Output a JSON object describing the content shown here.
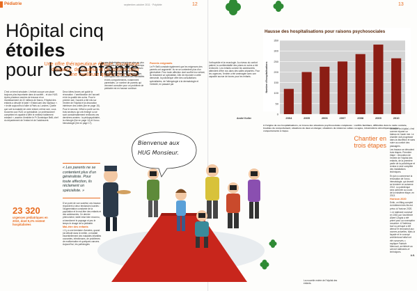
{
  "left_page": {
    "rubrique": "Pédiatrie",
    "folio_mid": "septembre-octobre 2011 · Polyâtrie",
    "folio_num": "12",
    "title_pre": "Hôpital cinq ",
    "title_bold": "étoiles",
    "title_line2": "pour les enfants",
    "subtitle": "Une offre thérapeutique élargie, davantage d'espace, de couleur et de lumière pour une meilleure qualité des soins.",
    "col1_text": "C'est un trend séculaire. L'enfant occupe une place toujours plus importante dans la société... et aux HUG. Après plusieurs années de travaux et un investissement de 22 millions de francs, l'Hôpital des enfants a dévoilé le label « Enfant-ami des hôpitaux ». « Invité aujourd'hui d'aller à Paris ou Londres. Quelle que soit la maladie de votre enfant, même rare, vous trouverez aux HUG un spécialiste, un professionnel compétent et capable d'offrir le meilleur traitement existant », assène d'emblée le Pr Dominique Belli, chef du département de l'enfant et de l'adolescent.",
    "col2_text": "Deux idées-forces ont guidé la rénovation : l'amélioration de l'accueil et de la qualité des soins. Pour le premier axe, l'accent a été mis sur l'entrée de l'hôpital et la décoration intérieure des unités (lire en page 15). Pour le second, l'effort a porté sur les trois secteurs qui ont émergé ou se sont considérablement renforcés ces dernières années : la pédopsychiatrie, la chirurgie (lire en page 14) et l'onco-hématologie (lire en page 17).",
    "col3_text": "ans pédiatriques est pris en plus en plus prépondérante dans l'enfance, du temps des patients », reprend le Pr Belli. Avec la croissance des activités de la policlinique, entièrement réaménagée, correspond une évolution des mentalités et des comportements, notamment parentales. Le nombre de parents qui viennent consulter pour un problème de pédiatrie est en hausse continue.",
    "parents_heading": "Parents exigeants",
    "col3b_text": "Le Pr Belli constate également que les exigences des parents ont augmenté. Ils ne se contentent plus d'un généraliste. Pour toute affection dont souffre leur enfant, ils réclament un spécialiste. Afin de répondre à cette demande, la policlinique offre des consultations spécialisées, de l'allergologie à la dermatologie et l'obésité, en passant par",
    "quote": "« Les parents ne se contentent plus d'un généraliste. Pour toute affection, ils réclament un spécialiste. »",
    "stat_number": "23 320",
    "stat_caption": "urgences pédiatriques en 2010, dont 9,2% restent hospitalisées",
    "col2b_text": "D'un point de vue sociétal, ces travaux répondent à deux tendances lourdes : l'augmentation constante de la population et le mal-être des enfants et des adolescents. Ce dernier phénomène, traité mise bien reconnu, a transformé le paysage et peu le temps le visage de la pédiatrie.",
    "malettre_heading": "Mal-être des enfants",
    "col2c_text": "« Il y a une trentaine d'années, quand j'ai débuté dans le métier, on traitait essentiellement des maladies infantiles courantes, infectieuses, de problèmes de malformation et quelques cancers. Aujourd'hui, les pathologies"
  },
  "right_page": {
    "folio_num": "13",
    "col1_text": "l'orthopédie et la neurologie. Au niveau du confort patient, la confidentialité des prises en soins a été renforcée. Les enfants comme les adolescents attendent d'être vus dans des salles séparées. Pour les urgences, l'entrée a été aménagée avec une capacité accrue de boxes pour les enfants.",
    "col1_sig": "André Koller",
    "caption": "A l'origine de ces hospitalisations, on trouve des situations psychosociales complexes : conflits familiaux, difficultés dans le cadre scolaire, troubles du comportement, situations de deux en danger, situations de violences subies ou agies, intoxications alcooliques et autres comportements à risque.",
    "side_title": "Chantier en trois étapes",
    "side_text_1": "Rénover un hôpital, c'est comme réparer un bateau en haute mer. Le chantier doit progresser dans la discrétion et sans nuire au confort des passagers.",
    "side_text_2": "Les travaux se déroulent trois étapes. Première étape : rénovation de l'entrée de l'hôpital des enfants, de la première partie de la policlinique et remise à neuf complète des installations techniques.",
    "side_text_3": "En juin a commencé la rénovation de l'onco-hématologie, qui devrait se terminer en automne 2012. La policlinique sera achevée au cours de la troisième étape, en 2013.",
    "horizon_heading": "Horizon 2020",
    "side_text_4": "Enfin, un lifting complet du bâtiment des lits est prévu à l'horizon 2020.",
    "side_text_5": "« Le bâtiment construit en 1961 par l'architecte Albert Cingria a été primé pour sa conception novatrice. À l'intérieur, tout ou presque a été démoli et reconstruit aux normes actuelles. Mais la façade et le concept architectural initial ont été conservés », explique Fabrizio Marcuzzi, architecte au service bâtiments et techniques.",
    "side_sig": "A.K.",
    "bubble_text_1": "Bienvenue aux",
    "bubble_text_2": "HUG Monsieur.",
    "photo_caption": "La nouvelle entrée de l'hôpital des enfants."
  },
  "chart_data": {
    "type": "bar",
    "title": "Hausse des hospitalisations pour raisons psychosociales",
    "ylabel": "Nombre d'hospitalisations",
    "categories": [
      "2004",
      "2005",
      "2006",
      "2007",
      "2008",
      "2009",
      "2010"
    ],
    "values": [
      120,
      200,
      225,
      250,
      285,
      330,
      265
    ],
    "yticks": [
      0,
      50,
      100,
      150,
      200,
      250,
      300,
      350
    ],
    "ylim": [
      0,
      350
    ],
    "grid": true,
    "colors": {
      "bar": "#8b1d14",
      "panel": "#d4d4d4",
      "title": "#5a2c0f"
    }
  },
  "colors": {
    "accent": "#e86b1f",
    "carpet": "#c8261c",
    "leaf": "#2f8a35"
  }
}
